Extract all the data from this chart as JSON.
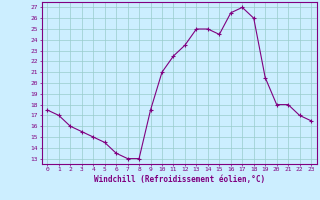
{
  "x": [
    0,
    1,
    2,
    3,
    4,
    5,
    6,
    7,
    8,
    9,
    10,
    11,
    12,
    13,
    14,
    15,
    16,
    17,
    18,
    19,
    20,
    21,
    22,
    23
  ],
  "y": [
    17.5,
    17.0,
    16.0,
    15.5,
    15.0,
    14.5,
    13.5,
    13.0,
    13.0,
    17.5,
    21.0,
    22.5,
    23.5,
    25.0,
    25.0,
    24.5,
    26.5,
    27.0,
    26.0,
    20.5,
    18.0,
    18.0,
    17.0,
    16.5
  ],
  "line_color": "#800080",
  "marker": "+",
  "bg_color": "#cceeff",
  "grid_color": "#99cccc",
  "xlabel": "Windchill (Refroidissement éolien,°C)",
  "ylabel_ticks": [
    13,
    14,
    15,
    16,
    17,
    18,
    19,
    20,
    21,
    22,
    23,
    24,
    25,
    26,
    27
  ],
  "ylim": [
    12.5,
    27.5
  ],
  "xlim": [
    -0.5,
    23.5
  ],
  "font_color": "#800080"
}
